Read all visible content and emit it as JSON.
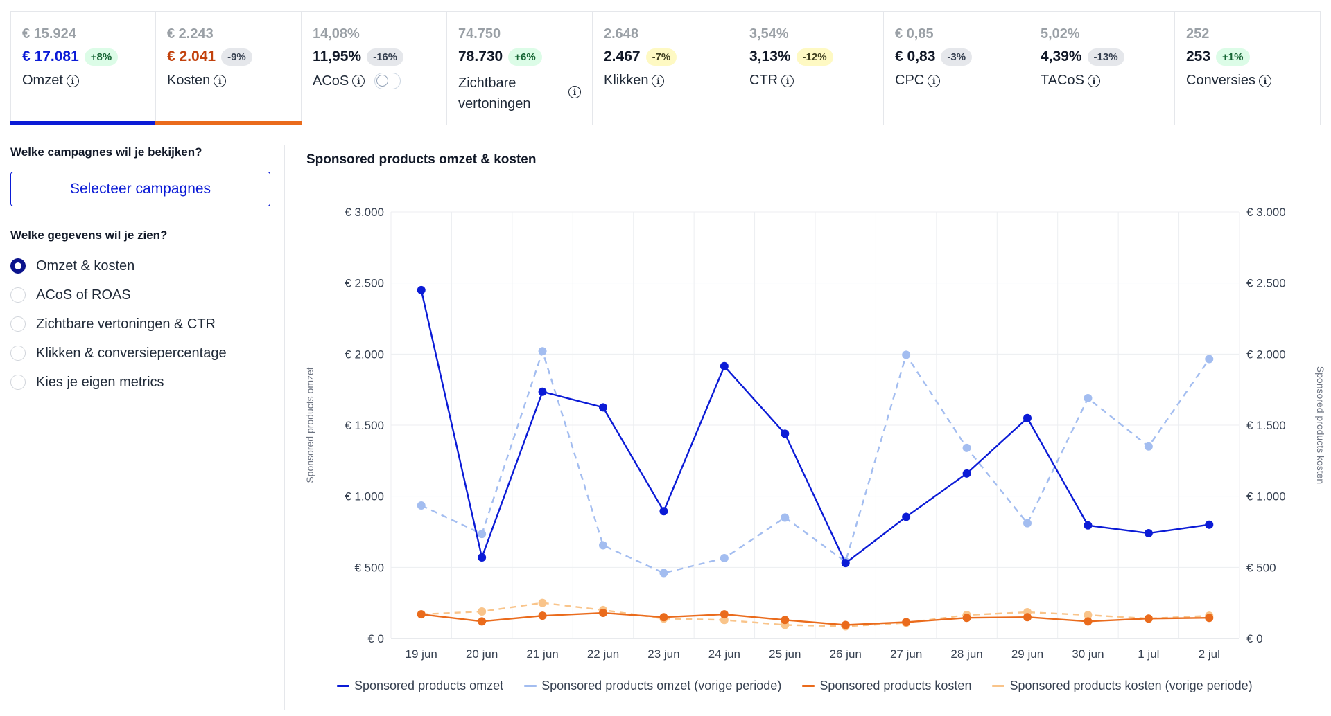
{
  "kpis": [
    {
      "id": "omzet",
      "prev": "€ 15.924",
      "cur": "€ 17.081",
      "change": "+8%",
      "change_type": "pos",
      "label": "Omzet",
      "cur_color": "#0b1bd6",
      "bar_color": "#0b1bd6"
    },
    {
      "id": "kosten",
      "prev": "€ 2.243",
      "cur": "€ 2.041",
      "change": "-9%",
      "change_type": "neutral",
      "label": "Kosten",
      "cur_color": "#c2410c",
      "bar_color": "#ea6b1c"
    },
    {
      "id": "acos",
      "prev": "14,08%",
      "cur": "11,95%",
      "change": "-16%",
      "change_type": "neutral",
      "label": "ACoS",
      "toggle": true
    },
    {
      "id": "vertoningen",
      "prev": "74.750",
      "cur": "78.730",
      "change": "+6%",
      "change_type": "pos",
      "label": "Zichtbare vertoningen",
      "wrap": true
    },
    {
      "id": "klikken",
      "prev": "2.648",
      "cur": "2.467",
      "change": "-7%",
      "change_type": "warn",
      "label": "Klikken"
    },
    {
      "id": "ctr",
      "prev": "3,54%",
      "cur": "3,13%",
      "change": "-12%",
      "change_type": "warn",
      "label": "CTR"
    },
    {
      "id": "cpc",
      "prev": "€ 0,85",
      "cur": "€ 0,83",
      "change": "-3%",
      "change_type": "neutral",
      "label": "CPC"
    },
    {
      "id": "tacos",
      "prev": "5,02%",
      "cur": "4,39%",
      "change": "-13%",
      "change_type": "neutral",
      "label": "TACoS"
    },
    {
      "id": "conversies",
      "prev": "252",
      "cur": "253",
      "change": "+1%",
      "change_type": "pos",
      "label": "Conversies"
    }
  ],
  "left_panel": {
    "campaign_question": "Welke campagnes wil je bekijken?",
    "select_button": "Selecteer campagnes",
    "data_question": "Welke gegevens wil je zien?",
    "options": [
      {
        "label": "Omzet & kosten",
        "checked": true
      },
      {
        "label": "ACoS of ROAS",
        "checked": false
      },
      {
        "label": "Zichtbare vertoningen & CTR",
        "checked": false
      },
      {
        "label": "Klikken & conversiepercentage",
        "checked": false
      },
      {
        "label": "Kies je eigen metrics",
        "checked": false
      }
    ]
  },
  "chart_data": {
    "type": "line",
    "title": "Sponsored products omzet & kosten",
    "ylabel": "Sponsored products omzet",
    "ylabel_right": "Sponsored products kosten",
    "ylim": [
      0,
      3000
    ],
    "y_ticks": [
      0,
      500,
      1000,
      1500,
      2000,
      2500,
      3000
    ],
    "y_tick_labels": [
      "€ 0",
      "€ 500",
      "€ 1.000",
      "€ 1.500",
      "€ 2.000",
      "€ 2.500",
      "€ 3.000"
    ],
    "categories": [
      "19 jun",
      "20 jun",
      "21 jun",
      "22 jun",
      "23 jun",
      "24 jun",
      "25 jun",
      "26 jun",
      "27 jun",
      "28 jun",
      "29 jun",
      "30 jun",
      "1 jul",
      "2 jul"
    ],
    "grid": true,
    "legend_position": "bottom",
    "series": [
      {
        "name": "Sponsored products omzet",
        "color": "#0b1bd6",
        "dashed": false,
        "values": [
          2450,
          570,
          1735,
          1625,
          895,
          1915,
          1440,
          530,
          855,
          1160,
          1550,
          795,
          740,
          800
        ]
      },
      {
        "name": "Sponsored products omzet (vorige periode)",
        "color": "#a3bdf0",
        "dashed": true,
        "values": [
          935,
          735,
          2020,
          655,
          460,
          565,
          850,
          540,
          1995,
          1340,
          810,
          1690,
          1350,
          1965
        ]
      },
      {
        "name": "Sponsored products kosten",
        "color": "#ea6b1c",
        "dashed": false,
        "values": [
          170,
          120,
          160,
          180,
          150,
          170,
          130,
          95,
          115,
          145,
          150,
          120,
          140,
          145
        ]
      },
      {
        "name": "Sponsored products kosten (vorige periode)",
        "color": "#f9c48a",
        "dashed": true,
        "values": [
          170,
          190,
          250,
          200,
          140,
          130,
          95,
          85,
          110,
          165,
          185,
          165,
          140,
          160
        ]
      }
    ]
  }
}
